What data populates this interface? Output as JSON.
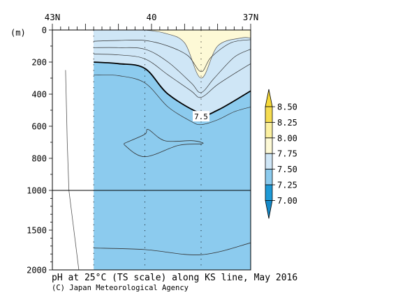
{
  "chart_data": {
    "type": "contour",
    "title": "pH at 25°C (TS scale) along KS line, May 2016",
    "credit": "(C) Japan Meteorological Agency",
    "ylabel": "(m)",
    "x_ticks": [
      "43N",
      "40",
      "37N"
    ],
    "x_range_lat": [
      43,
      37
    ],
    "y_ticks": [
      0,
      200,
      400,
      600,
      800,
      1000,
      1500,
      2000
    ],
    "ylim": [
      0,
      2000
    ],
    "y_axis_break_m": 1000,
    "data_lat_range": [
      41.75,
      37
    ],
    "station_lats": [
      41.75,
      40.2,
      38.5
    ],
    "colorbar": {
      "labels": [
        "8.50",
        "8.25",
        "8.00",
        "7.75",
        "7.50",
        "7.25",
        "7.00"
      ],
      "bands": [
        {
          "range": [
            8.25,
            8.5
          ],
          "color": "#f5dc50"
        },
        {
          "range": [
            8.0,
            8.25
          ],
          "color": "#fbf0a0"
        },
        {
          "range": [
            7.75,
            8.0
          ],
          "color": "#fdf9d6"
        },
        {
          "range": [
            7.5,
            7.75
          ],
          "color": "#cfe6f6"
        },
        {
          "range": [
            7.25,
            7.5
          ],
          "color": "#8ccbee"
        },
        {
          "range": [
            7.0,
            7.25
          ],
          "color": "#1f9ad6"
        }
      ],
      "over_color": "#f5d838",
      "under_color": "#1589c8"
    },
    "contour_label": "7.5",
    "surface_band": {
      "label": "7.75-8.00",
      "top": [
        [
          41.75,
          0
        ],
        [
          37,
          0
        ]
      ],
      "bottom": [
        [
          40.2,
          0
        ],
        [
          39.6,
          20
        ],
        [
          39.0,
          80
        ],
        [
          38.5,
          300
        ],
        [
          38.0,
          100
        ],
        [
          37.3,
          50
        ],
        [
          37,
          50
        ]
      ]
    },
    "light_blue_band": {
      "label": "7.50-7.75",
      "bottom": [
        [
          41.75,
          200
        ],
        [
          41.0,
          210
        ],
        [
          40.2,
          240
        ],
        [
          39.5,
          400
        ],
        [
          38.5,
          520
        ],
        [
          38.0,
          500
        ],
        [
          37,
          380
        ]
      ]
    },
    "isolines_upper": [
      [
        [
          41.75,
          70
        ],
        [
          41.0,
          65
        ],
        [
          40.2,
          65
        ],
        [
          39.5,
          100
        ],
        [
          38.9,
          160
        ],
        [
          38.5,
          260
        ],
        [
          38.2,
          170
        ],
        [
          37.6,
          80
        ],
        [
          37,
          60
        ]
      ],
      [
        [
          41.75,
          110
        ],
        [
          41.0,
          110
        ],
        [
          40.2,
          120
        ],
        [
          39.5,
          200
        ],
        [
          38.8,
          330
        ],
        [
          38.5,
          390
        ],
        [
          38.1,
          300
        ],
        [
          37.5,
          170
        ],
        [
          37,
          120
        ]
      ],
      [
        [
          41.75,
          150
        ],
        [
          41.0,
          155
        ],
        [
          40.2,
          180
        ],
        [
          39.5,
          280
        ],
        [
          38.8,
          380
        ],
        [
          38.5,
          420
        ],
        [
          38.0,
          340
        ],
        [
          37.4,
          260
        ],
        [
          37,
          210
        ]
      ],
      [
        [
          41.75,
          280
        ],
        [
          41.0,
          285
        ],
        [
          40.2,
          330
        ],
        [
          39.5,
          480
        ],
        [
          38.8,
          570
        ],
        [
          38.5,
          590
        ],
        [
          38.0,
          560
        ],
        [
          37.5,
          510
        ],
        [
          37,
          480
        ]
      ]
    ],
    "isoline_closed": [
      [
        40.75,
        700
      ],
      [
        40.2,
        650
      ],
      [
        40.1,
        620
      ],
      [
        39.6,
        690
      ],
      [
        38.8,
        690
      ],
      [
        38.5,
        700
      ],
      [
        38.5,
        710
      ],
      [
        39.2,
        720
      ],
      [
        40.2,
        790
      ],
      [
        40.8,
        720
      ],
      [
        40.75,
        700
      ]
    ],
    "isoline_deep": [
      [
        41.75,
        1725
      ],
      [
        40.2,
        1745
      ],
      [
        38.5,
        1810
      ],
      [
        37,
        1660
      ]
    ],
    "left_profile": [
      [
        42.6,
        250
      ],
      [
        42.55,
        700
      ],
      [
        42.5,
        1000
      ],
      [
        42.35,
        1500
      ],
      [
        42.2,
        2000
      ]
    ]
  }
}
